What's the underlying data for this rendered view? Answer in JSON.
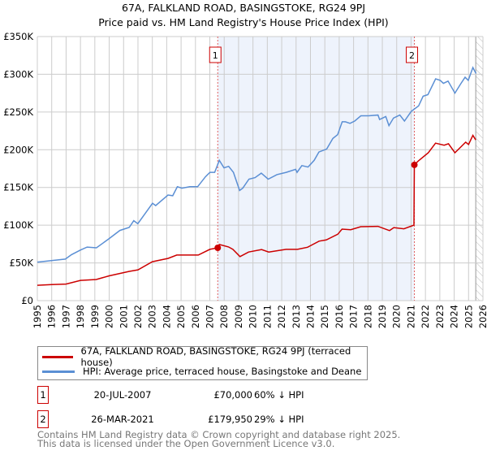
{
  "chart_data": {
    "type": "line",
    "title": "67A, FALKLAND ROAD, BASINGSTOKE, RG24 9PJ",
    "subtitle": "Price paid vs. HM Land Registry's House Price Index (HPI)",
    "xlim": [
      1995,
      2026
    ],
    "ylim": [
      0,
      350000
    ],
    "x_ticks": [
      "1995",
      "1996",
      "1997",
      "1998",
      "1999",
      "2000",
      "2001",
      "2002",
      "2003",
      "2004",
      "2005",
      "2006",
      "2007",
      "2008",
      "2009",
      "2010",
      "2011",
      "2012",
      "2013",
      "2014",
      "2015",
      "2016",
      "2017",
      "2018",
      "2019",
      "2020",
      "2021",
      "2022",
      "2023",
      "2024",
      "2025",
      "2026"
    ],
    "y_ticks": [
      {
        "v": 0,
        "label": "£0"
      },
      {
        "v": 50000,
        "label": "£50K"
      },
      {
        "v": 100000,
        "label": "£100K"
      },
      {
        "v": 150000,
        "label": "£150K"
      },
      {
        "v": 200000,
        "label": "£200K"
      },
      {
        "v": 250000,
        "label": "£250K"
      },
      {
        "v": 300000,
        "label": "£300K"
      },
      {
        "v": 350000,
        "label": "£350K"
      }
    ],
    "grid": true,
    "shaded_range": [
      2007.55,
      2021.23
    ],
    "forecast_hatch_from": 2025.5,
    "colors": {
      "property": "#cc0000",
      "hpi": "#5b8fd4",
      "shade": "#eef3fc",
      "grid": "#cccccc"
    },
    "series": [
      {
        "name": "67A, FALKLAND ROAD, BASINGSTOKE, RG24 9PJ (terraced house)",
        "color": "#cc0000",
        "points": [
          [
            1995,
            20400
          ],
          [
            1996,
            21200
          ],
          [
            1997,
            22000
          ],
          [
            1998,
            26800
          ],
          [
            1999.1,
            28000
          ],
          [
            2000,
            32800
          ],
          [
            2001.4,
            38800
          ],
          [
            2002,
            40800
          ],
          [
            2003,
            51600
          ],
          [
            2004.1,
            56000
          ],
          [
            2004.7,
            60400
          ],
          [
            2006.2,
            60400
          ],
          [
            2007,
            68000
          ],
          [
            2007.55,
            70000
          ],
          [
            2007.66,
            74400
          ],
          [
            2008.3,
            71200
          ],
          [
            2008.6,
            68000
          ],
          [
            2009.1,
            58400
          ],
          [
            2009.7,
            64400
          ],
          [
            2010.6,
            67600
          ],
          [
            2011.1,
            64400
          ],
          [
            2012.3,
            68000
          ],
          [
            2013.1,
            68000
          ],
          [
            2013.8,
            70800
          ],
          [
            2014.6,
            78800
          ],
          [
            2015.1,
            80400
          ],
          [
            2015.9,
            88000
          ],
          [
            2016.2,
            94800
          ],
          [
            2016.8,
            94000
          ],
          [
            2017.5,
            98000
          ],
          [
            2018.7,
            98400
          ],
          [
            2019.5,
            92800
          ],
          [
            2019.8,
            96800
          ],
          [
            2020.5,
            95200
          ],
          [
            2021.2,
            100000
          ],
          [
            2021.23,
            179950
          ],
          [
            2021.5,
            185000
          ],
          [
            2022.2,
            196000
          ],
          [
            2022.7,
            208700
          ],
          [
            2023.3,
            206000
          ],
          [
            2023.6,
            208000
          ],
          [
            2024.05,
            196000
          ],
          [
            2024.8,
            210000
          ],
          [
            2025.0,
            207000
          ],
          [
            2025.3,
            219000
          ],
          [
            2025.5,
            213000
          ]
        ]
      },
      {
        "name": "HPI: Average price, terraced house, Basingstoke and Deane",
        "color": "#5b8fd4",
        "points": [
          [
            1995,
            51000
          ],
          [
            1995.97,
            53000
          ],
          [
            1996.95,
            55000
          ],
          [
            1997.38,
            61000
          ],
          [
            1997.99,
            67000
          ],
          [
            1998.46,
            71000
          ],
          [
            1999.11,
            70000
          ],
          [
            1999.98,
            82000
          ],
          [
            2000.74,
            93000
          ],
          [
            2001.39,
            97000
          ],
          [
            2001.71,
            106000
          ],
          [
            2001.99,
            102000
          ],
          [
            2003.01,
            129000
          ],
          [
            2003.23,
            126000
          ],
          [
            2004.09,
            140000
          ],
          [
            2004.42,
            139000
          ],
          [
            2004.74,
            151000
          ],
          [
            2005.06,
            149000
          ],
          [
            2005.61,
            151000
          ],
          [
            2006.15,
            151000
          ],
          [
            2006.69,
            164000
          ],
          [
            2007.01,
            170000
          ],
          [
            2007.34,
            170000
          ],
          [
            2007.66,
            186000
          ],
          [
            2007.99,
            176000
          ],
          [
            2008.31,
            178000
          ],
          [
            2008.64,
            170000
          ],
          [
            2009.07,
            146000
          ],
          [
            2009.29,
            149000
          ],
          [
            2009.72,
            161000
          ],
          [
            2010.15,
            163000
          ],
          [
            2010.58,
            169000
          ],
          [
            2011.06,
            161000
          ],
          [
            2011.67,
            167000
          ],
          [
            2012.32,
            170000
          ],
          [
            2012.97,
            174000
          ],
          [
            2013.07,
            170000
          ],
          [
            2013.4,
            179000
          ],
          [
            2013.83,
            177000
          ],
          [
            2014.26,
            186000
          ],
          [
            2014.59,
            197000
          ],
          [
            2015.13,
            201000
          ],
          [
            2015.56,
            215000
          ],
          [
            2015.89,
            220000
          ],
          [
            2016.21,
            237000
          ],
          [
            2016.43,
            237000
          ],
          [
            2016.75,
            235000
          ],
          [
            2017.08,
            238000
          ],
          [
            2017.51,
            245000
          ],
          [
            2018.05,
            245000
          ],
          [
            2018.7,
            246000
          ],
          [
            2018.81,
            240000
          ],
          [
            2019.24,
            244000
          ],
          [
            2019.46,
            232000
          ],
          [
            2019.78,
            242000
          ],
          [
            2020.22,
            246000
          ],
          [
            2020.54,
            238000
          ],
          [
            2021.02,
            251000
          ],
          [
            2021.52,
            258000
          ],
          [
            2021.84,
            271000
          ],
          [
            2022.17,
            273000
          ],
          [
            2022.71,
            294000
          ],
          [
            2023.03,
            292000
          ],
          [
            2023.25,
            288000
          ],
          [
            2023.57,
            291000
          ],
          [
            2024.05,
            275000
          ],
          [
            2024.44,
            287000
          ],
          [
            2024.76,
            296000
          ],
          [
            2024.98,
            292000
          ],
          [
            2025.3,
            309000
          ],
          [
            2025.52,
            301000
          ]
        ]
      }
    ],
    "annotations": [
      {
        "label": "1",
        "x": 2007.55,
        "y": 70000
      },
      {
        "label": "2",
        "x": 2021.23,
        "y": 179950
      }
    ]
  },
  "legend": {
    "property": "67A, FALKLAND ROAD, BASINGSTOKE, RG24 9PJ (terraced house)",
    "hpi": "HPI: Average price, terraced house, Basingstoke and Deane"
  },
  "sales": [
    {
      "num": "1",
      "date": "20-JUL-2007",
      "price": "£70,000",
      "hpi": "60% ↓ HPI"
    },
    {
      "num": "2",
      "date": "26-MAR-2021",
      "price": "£179,950",
      "hpi": "29% ↓ HPI"
    }
  ],
  "footer": {
    "line1": "Contains HM Land Registry data © Crown copyright and database right 2025.",
    "line2": "This data is licensed under the Open Government Licence v3.0."
  }
}
